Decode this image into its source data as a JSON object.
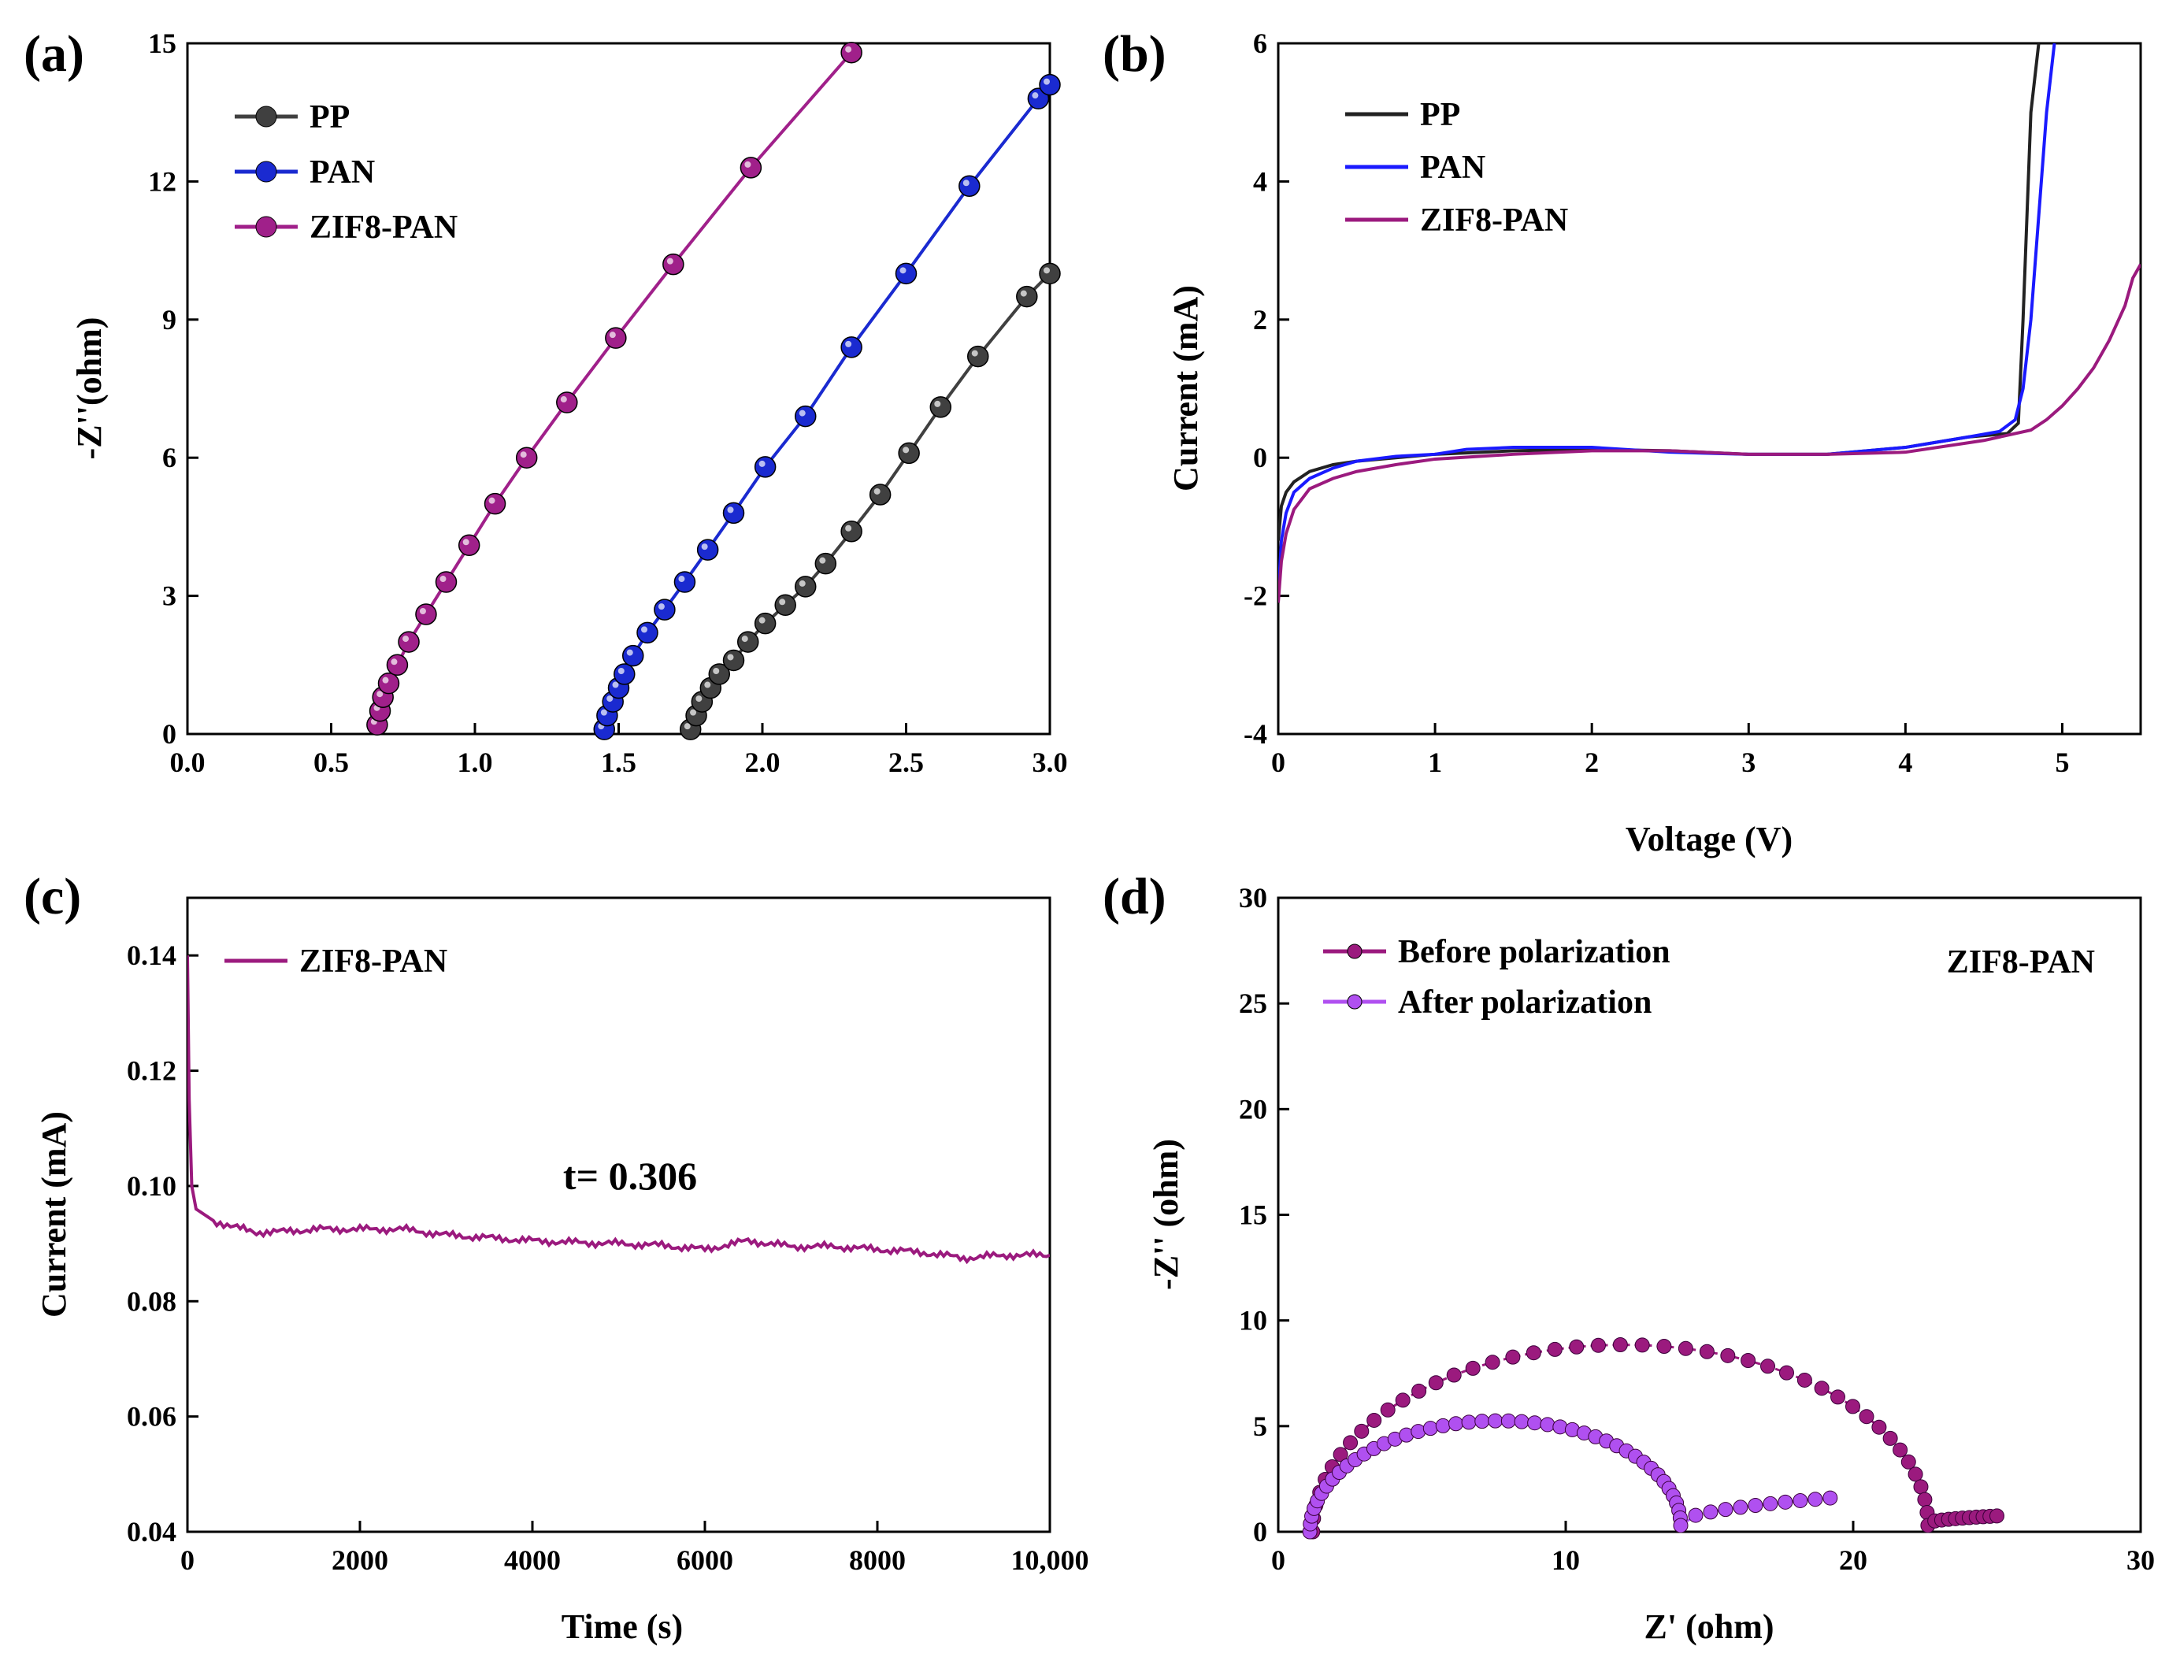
{
  "figure": {
    "panels": [
      "(a)",
      "(b)",
      "(c)",
      "(d)"
    ]
  },
  "chart_data": [
    {
      "panel": "(a)",
      "type": "line",
      "xlabel": "",
      "ylabel": "-Z''(ohm)",
      "xlim": [
        0.0,
        3.0
      ],
      "ylim": [
        0,
        15
      ],
      "xticks": [
        "0.0",
        "0.5",
        "1.0",
        "1.5",
        "2.0",
        "2.5",
        "3.0"
      ],
      "yticks": [
        "0",
        "3",
        "6",
        "9",
        "12",
        "15"
      ],
      "legend_position": "top-left",
      "markers": true,
      "series": [
        {
          "name": "PP",
          "color": "#404040",
          "x": [
            1.75,
            1.77,
            1.79,
            1.82,
            1.85,
            1.9,
            1.95,
            2.01,
            2.08,
            2.15,
            2.22,
            2.31,
            2.41,
            2.51,
            2.62,
            2.75,
            2.92,
            3.0
          ],
          "y": [
            0.1,
            0.4,
            0.7,
            1.0,
            1.3,
            1.6,
            2.0,
            2.4,
            2.8,
            3.2,
            3.7,
            4.4,
            5.2,
            6.1,
            7.1,
            8.2,
            9.5,
            10.0
          ]
        },
        {
          "name": "PAN",
          "color": "#1a2ad0",
          "x": [
            1.45,
            1.46,
            1.48,
            1.5,
            1.52,
            1.55,
            1.6,
            1.66,
            1.73,
            1.81,
            1.9,
            2.01,
            2.15,
            2.31,
            2.5,
            2.72,
            2.96,
            3.0
          ],
          "y": [
            0.1,
            0.4,
            0.7,
            1.0,
            1.3,
            1.7,
            2.2,
            2.7,
            3.3,
            4.0,
            4.8,
            5.8,
            6.9,
            8.4,
            10.0,
            11.9,
            13.8,
            14.1
          ]
        },
        {
          "name": "ZIF8-PAN",
          "color": "#a0208a",
          "x": [
            0.66,
            0.67,
            0.68,
            0.7,
            0.73,
            0.77,
            0.83,
            0.9,
            0.98,
            1.07,
            1.18,
            1.32,
            1.49,
            1.69,
            1.96,
            2.31
          ],
          "y": [
            0.2,
            0.5,
            0.8,
            1.1,
            1.5,
            2.0,
            2.6,
            3.3,
            4.1,
            5.0,
            6.0,
            7.2,
            8.6,
            10.2,
            12.3,
            14.8
          ]
        }
      ]
    },
    {
      "panel": "(b)",
      "type": "line",
      "xlabel": "Voltage (V)",
      "ylabel": "Current (mA)",
      "xlim": [
        0,
        5.5
      ],
      "ylim": [
        -4,
        6
      ],
      "xticks": [
        "0",
        "1",
        "2",
        "3",
        "4",
        "5"
      ],
      "yticks": [
        "-4",
        "-2",
        "0",
        "2",
        "4",
        "6"
      ],
      "legend_position": "top-left",
      "markers": false,
      "series": [
        {
          "name": "PP",
          "color": "#222222",
          "x": [
            0.0,
            0.02,
            0.05,
            0.1,
            0.2,
            0.35,
            0.5,
            0.75,
            1.0,
            1.5,
            2.0,
            2.5,
            3.0,
            3.5,
            4.0,
            4.4,
            4.65,
            4.72,
            4.75,
            4.8,
            4.85
          ],
          "y": [
            -1.2,
            -0.7,
            -0.5,
            -0.35,
            -0.2,
            -0.1,
            -0.05,
            0.0,
            0.05,
            0.1,
            0.12,
            0.1,
            0.05,
            0.05,
            0.15,
            0.3,
            0.35,
            0.5,
            2.0,
            5.0,
            6.0
          ]
        },
        {
          "name": "PAN",
          "color": "#1a1aff",
          "x": [
            0.0,
            0.02,
            0.05,
            0.1,
            0.2,
            0.35,
            0.5,
            0.75,
            1.0,
            1.2,
            1.5,
            2.0,
            2.5,
            3.0,
            3.5,
            4.0,
            4.4,
            4.6,
            4.7,
            4.75,
            4.8,
            4.85,
            4.9,
            4.95
          ],
          "y": [
            -2.0,
            -1.2,
            -0.8,
            -0.5,
            -0.3,
            -0.15,
            -0.05,
            0.02,
            0.05,
            0.12,
            0.15,
            0.15,
            0.08,
            0.05,
            0.05,
            0.15,
            0.3,
            0.38,
            0.55,
            1.0,
            2.0,
            3.5,
            5.0,
            6.0
          ]
        },
        {
          "name": "ZIF8-PAN",
          "color": "#9b1a7e",
          "x": [
            0.0,
            0.02,
            0.05,
            0.1,
            0.2,
            0.35,
            0.5,
            0.75,
            1.0,
            1.5,
            2.0,
            2.5,
            3.0,
            3.5,
            4.0,
            4.5,
            4.8,
            4.9,
            5.0,
            5.1,
            5.2,
            5.3,
            5.4,
            5.45,
            5.5
          ],
          "y": [
            -2.1,
            -1.5,
            -1.1,
            -0.75,
            -0.45,
            -0.3,
            -0.2,
            -0.1,
            -0.02,
            0.05,
            0.1,
            0.1,
            0.05,
            0.05,
            0.08,
            0.25,
            0.4,
            0.55,
            0.75,
            1.0,
            1.3,
            1.7,
            2.2,
            2.6,
            2.8
          ]
        }
      ]
    },
    {
      "panel": "(c)",
      "type": "line",
      "xlabel": "Time (s)",
      "ylabel": "Current (mA)",
      "xlim": [
        0,
        10000
      ],
      "ylim": [
        0.04,
        0.15
      ],
      "xticks": [
        "0",
        "2000",
        "4000",
        "6000",
        "8000",
        "10,000"
      ],
      "yticks": [
        "0.04",
        "0.06",
        "0.08",
        "0.10",
        "0.12",
        "0.14"
      ],
      "legend_position": "top-left",
      "annotation": "t= 0.306",
      "markers": false,
      "series": [
        {
          "name": "ZIF8-PAN",
          "color": "#9b1a7e",
          "x": [
            0,
            20,
            50,
            100,
            200,
            300,
            500,
            800,
            1000,
            1500,
            2000,
            2500,
            3000,
            3500,
            4000,
            4500,
            5000,
            5500,
            6000,
            6500,
            7000,
            7500,
            8000,
            8500,
            9000,
            9500,
            10000
          ],
          "y": [
            0.14,
            0.115,
            0.1,
            0.096,
            0.095,
            0.094,
            0.093,
            0.092,
            0.092,
            0.0925,
            0.0925,
            0.0925,
            0.0915,
            0.091,
            0.0905,
            0.0902,
            0.09,
            0.0897,
            0.089,
            0.0905,
            0.0895,
            0.0895,
            0.089,
            0.0885,
            0.0875,
            0.088,
            0.088
          ]
        }
      ]
    },
    {
      "panel": "(d)",
      "type": "scatter",
      "xlabel": "Z' (ohm)",
      "ylabel": "-Z'' (ohm)",
      "xlim": [
        0,
        30
      ],
      "ylim": [
        0,
        30
      ],
      "xticks": [
        "0",
        "10",
        "20",
        "30"
      ],
      "yticks": [
        "0",
        "5",
        "10",
        "15",
        "20",
        "25",
        "30"
      ],
      "legend_position": "top-left",
      "annotation": "ZIF8-PAN",
      "markers": true,
      "series": [
        {
          "name": "Before polarization",
          "color": "#9b1a7e",
          "arc": {
            "x0": 1.2,
            "x1": 22.6,
            "peak": 8.7,
            "tail_end": 25.0,
            "tail_y": 0.75
          }
        },
        {
          "name": "After polarization",
          "color": "#b050f0",
          "arc": {
            "x0": 1.1,
            "x1": 14.0,
            "peak": 5.1,
            "tail_end": 19.2,
            "tail_y": 1.6
          }
        }
      ]
    }
  ]
}
